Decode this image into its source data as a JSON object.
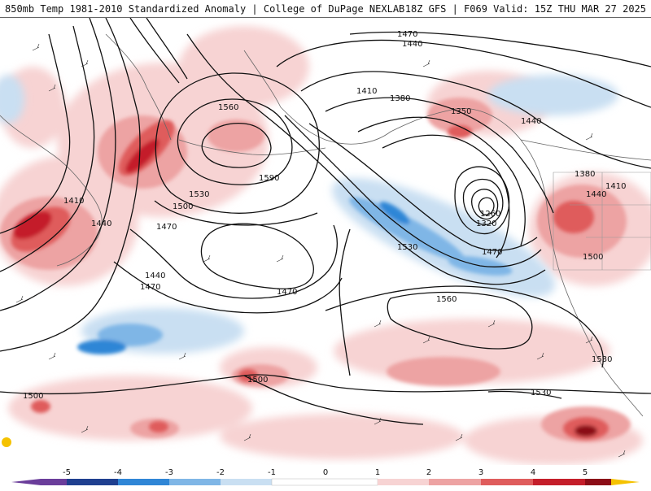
{
  "header": {
    "title_left": "850mb Temp 1981-2010 Standardized Anomaly | College of DuPage NEXLAB",
    "title_right": "18Z GFS | F069 Valid: 15Z THU MAR 27 2025"
  },
  "colors": {
    "neg5": "#6a3d9a",
    "neg4": "#1f3f8f",
    "neg3": "#2f86d6",
    "neg2": "#7fb6e6",
    "neg1": "#c9dff2",
    "zero": "#ffffff",
    "pos1": "#f7d3d3",
    "pos2": "#eda3a3",
    "pos3": "#df5c5c",
    "pos4": "#c41e2a",
    "pos5": "#8b0d17",
    "pos6": "#f5c200",
    "contour": "#111111",
    "coast": "#666666"
  },
  "colorbar": {
    "ticks": [
      "-5",
      "-4",
      "-3",
      "-2",
      "-1",
      "0",
      "1",
      "2",
      "3",
      "4",
      "5"
    ]
  },
  "contour_labels": [
    "1470",
    "1440",
    "1410",
    "1380",
    "1350",
    "1440",
    "1560",
    "1590",
    "1530",
    "1500",
    "1470",
    "1410",
    "1440",
    "1440",
    "1470",
    "1470",
    "1380",
    "1410",
    "1440",
    "1260",
    "1320",
    "1470",
    "1530",
    "1500",
    "1560",
    "1530",
    "1530",
    "1500",
    "1500"
  ]
}
